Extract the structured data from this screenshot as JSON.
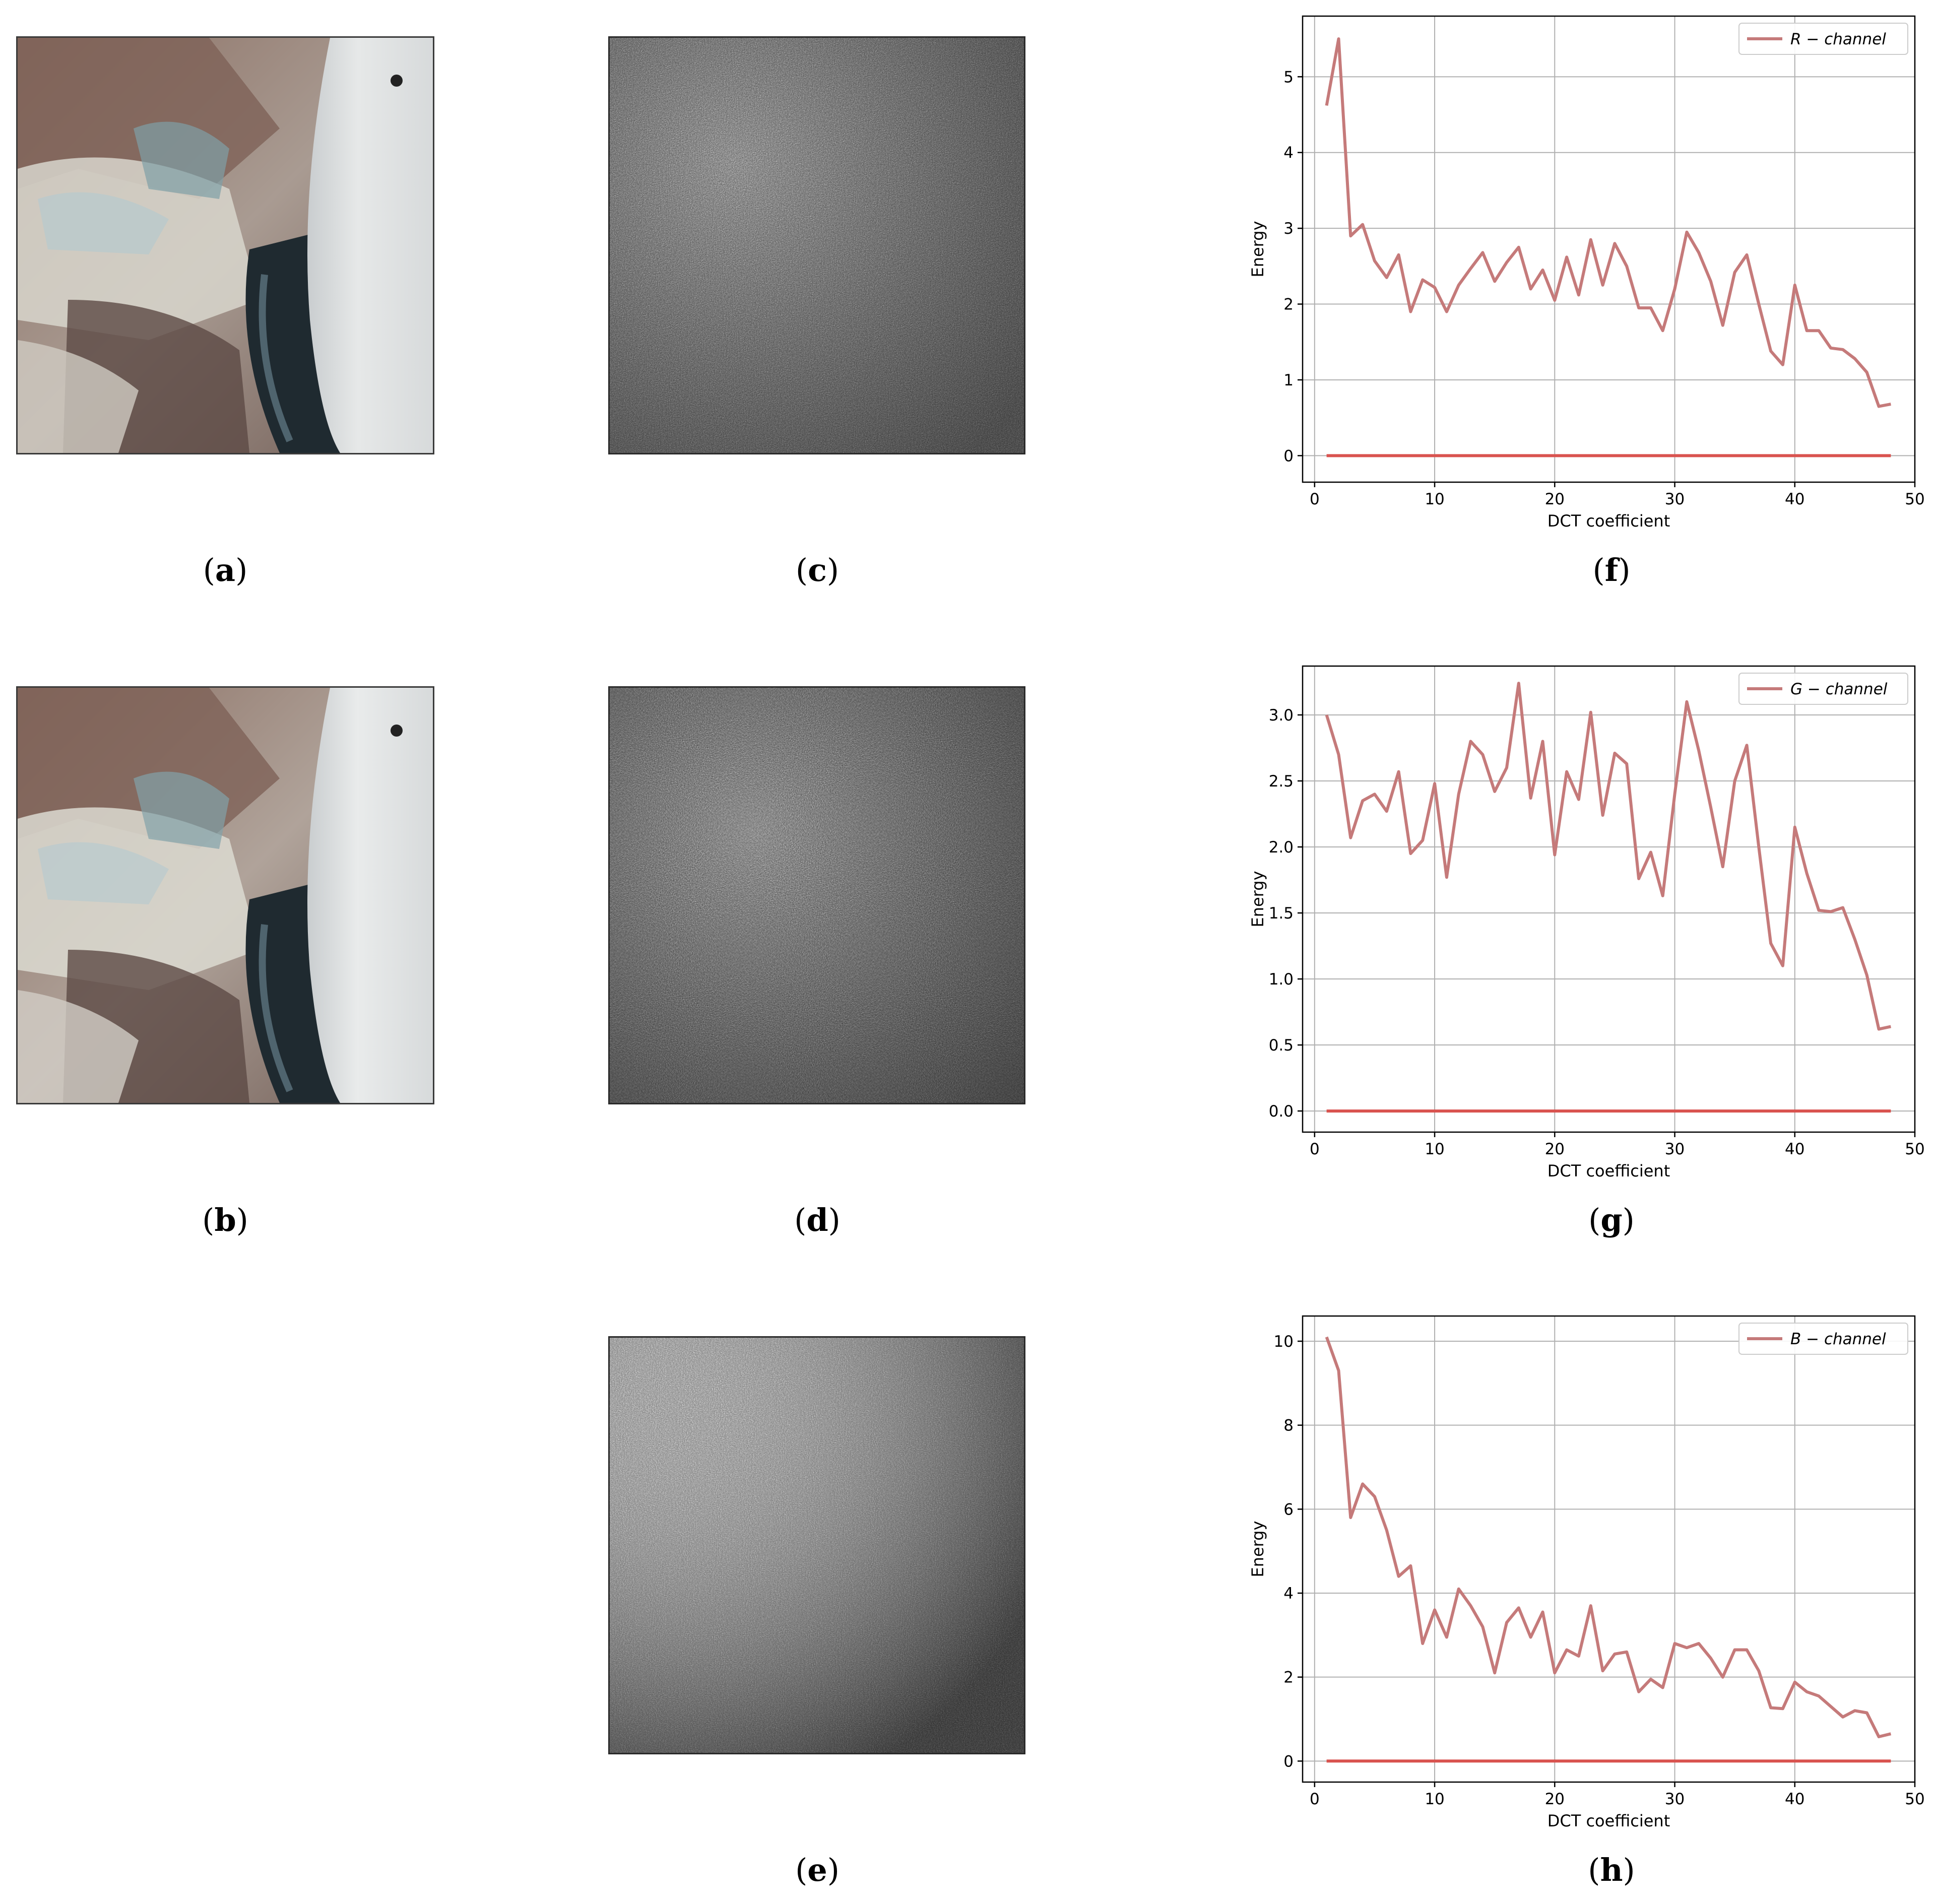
{
  "figure": {
    "captions": {
      "a": "a",
      "b": "b",
      "c": "c",
      "d": "d",
      "e": "e",
      "f": "f",
      "g": "g",
      "h": "h"
    }
  },
  "chart_data": [
    {
      "panel": "f",
      "type": "line",
      "xlabel": "DCT coefficient",
      "ylabel": "Energy",
      "xlim": [
        -1,
        50
      ],
      "ylim": [
        -0.35,
        5.8
      ],
      "xticks": [
        0,
        10,
        20,
        30,
        40,
        50
      ],
      "yticks": [
        0,
        1,
        2,
        3,
        4,
        5
      ],
      "ytick_labels": [
        "0",
        "1",
        "2",
        "3",
        "4",
        "5"
      ],
      "grid": true,
      "legend": "top-right",
      "series": [
        {
          "name": "R − channel",
          "color": "#c57a7a",
          "x": [
            1,
            2,
            3,
            4,
            5,
            6,
            7,
            8,
            9,
            10,
            11,
            12,
            13,
            14,
            15,
            16,
            17,
            18,
            19,
            20,
            21,
            22,
            23,
            24,
            25,
            26,
            27,
            28,
            29,
            30,
            31,
            32,
            33,
            34,
            35,
            36,
            37,
            38,
            39,
            40,
            41,
            42,
            43,
            44,
            45,
            46,
            47,
            48
          ],
          "values": [
            4.62,
            5.5,
            2.9,
            3.05,
            2.57,
            2.35,
            2.65,
            1.9,
            2.32,
            2.22,
            1.9,
            2.25,
            2.47,
            2.68,
            2.3,
            2.55,
            2.75,
            2.2,
            2.45,
            2.05,
            2.62,
            2.12,
            2.85,
            2.25,
            2.8,
            2.5,
            1.95,
            1.95,
            1.65,
            2.2,
            2.95,
            2.68,
            2.3,
            1.72,
            2.42,
            2.65,
            2.0,
            1.38,
            1.2,
            2.25,
            1.65,
            1.65,
            1.42,
            1.4,
            1.28,
            1.1,
            0.65,
            0.68
          ]
        },
        {
          "name": "",
          "color": "#d9534f",
          "x": [
            1,
            48
          ],
          "values": [
            0,
            0
          ]
        }
      ]
    },
    {
      "panel": "g",
      "type": "line",
      "xlabel": "DCT coefficient",
      "ylabel": "Energy",
      "xlim": [
        -1,
        50
      ],
      "ylim": [
        -0.16,
        3.37
      ],
      "xticks": [
        0,
        10,
        20,
        30,
        40,
        50
      ],
      "yticks": [
        0,
        0.5,
        1.0,
        1.5,
        2.0,
        2.5,
        3.0
      ],
      "ytick_labels": [
        "0.0",
        "0.5",
        "1.0",
        "1.5",
        "2.0",
        "2.5",
        "3.0"
      ],
      "grid": true,
      "legend": "top-right",
      "series": [
        {
          "name": "G − channel",
          "color": "#c57a7a",
          "x": [
            1,
            2,
            3,
            4,
            5,
            6,
            7,
            8,
            9,
            10,
            11,
            12,
            13,
            14,
            15,
            16,
            17,
            18,
            19,
            20,
            21,
            22,
            23,
            24,
            25,
            26,
            27,
            28,
            29,
            30,
            31,
            32,
            33,
            34,
            35,
            36,
            37,
            38,
            39,
            40,
            41,
            42,
            43,
            44,
            45,
            46,
            47,
            48
          ],
          "values": [
            3.0,
            2.7,
            2.07,
            2.35,
            2.4,
            2.27,
            2.57,
            1.95,
            2.05,
            2.48,
            1.77,
            2.4,
            2.8,
            2.7,
            2.42,
            2.6,
            3.24,
            2.37,
            2.8,
            1.94,
            2.57,
            2.36,
            3.02,
            2.24,
            2.71,
            2.63,
            1.76,
            1.96,
            1.63,
            2.4,
            3.1,
            2.73,
            2.3,
            1.85,
            2.5,
            2.77,
            2.0,
            1.27,
            1.1,
            2.15,
            1.8,
            1.52,
            1.51,
            1.54,
            1.3,
            1.03,
            0.62,
            0.64
          ]
        },
        {
          "name": "",
          "color": "#d9534f",
          "x": [
            1,
            48
          ],
          "values": [
            0,
            0
          ]
        }
      ]
    },
    {
      "panel": "h",
      "type": "line",
      "xlabel": "DCT coefficient",
      "ylabel": "Energy",
      "xlim": [
        -1,
        50
      ],
      "ylim": [
        -0.5,
        10.6
      ],
      "xticks": [
        0,
        10,
        20,
        30,
        40,
        50
      ],
      "yticks": [
        0,
        2,
        4,
        6,
        8,
        10
      ],
      "ytick_labels": [
        "0",
        "2",
        "4",
        "6",
        "8",
        "10"
      ],
      "grid": true,
      "legend": "top-right",
      "series": [
        {
          "name": "B − channel",
          "color": "#c57a7a",
          "x": [
            1,
            2,
            3,
            4,
            5,
            6,
            7,
            8,
            9,
            10,
            11,
            12,
            13,
            14,
            15,
            16,
            17,
            18,
            19,
            20,
            21,
            22,
            23,
            24,
            25,
            26,
            27,
            28,
            29,
            30,
            31,
            32,
            33,
            34,
            35,
            36,
            37,
            38,
            39,
            40,
            41,
            42,
            43,
            44,
            45,
            46,
            47,
            48
          ],
          "values": [
            10.1,
            9.3,
            5.8,
            6.6,
            6.3,
            5.5,
            4.4,
            4.65,
            2.8,
            3.6,
            2.95,
            4.1,
            3.7,
            3.2,
            2.1,
            3.3,
            3.65,
            2.95,
            3.55,
            2.1,
            2.65,
            2.5,
            3.7,
            2.15,
            2.55,
            2.6,
            1.65,
            1.95,
            1.75,
            2.8,
            2.7,
            2.8,
            2.45,
            2.0,
            2.65,
            2.65,
            2.15,
            1.27,
            1.25,
            1.88,
            1.65,
            1.55,
            1.3,
            1.05,
            1.2,
            1.15,
            0.58,
            0.65
          ]
        },
        {
          "name": "",
          "color": "#d9534f",
          "x": [
            1,
            48
          ],
          "values": [
            0,
            0
          ]
        }
      ]
    }
  ]
}
